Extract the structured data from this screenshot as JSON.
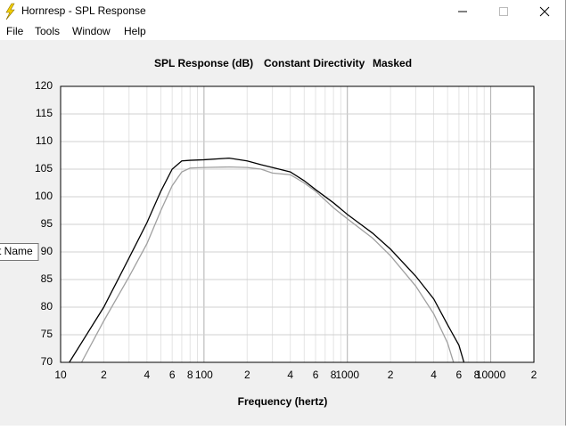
{
  "window": {
    "title": "Hornresp - SPL Response"
  },
  "menu": [
    "File",
    "Tools",
    "Window",
    "Help"
  ],
  "tooltip": "t Name",
  "chart_data": {
    "type": "line",
    "title": [
      "SPL Response (dB)",
      "Constant Directivity",
      "Masked"
    ],
    "x_label": "Frequency (hertz)",
    "log_x": true,
    "grid": true,
    "xlim": [
      10,
      20000
    ],
    "ylim": [
      70,
      120
    ],
    "yticks": [
      70,
      75,
      80,
      85,
      90,
      95,
      100,
      105,
      110,
      115,
      120
    ],
    "xticks": [
      10,
      {
        "value": 20,
        "label": "2"
      },
      {
        "value": 40,
        "label": "4"
      },
      {
        "value": 60,
        "label": "6"
      },
      {
        "value": 80,
        "label": "8"
      },
      100,
      {
        "value": 200,
        "label": "2"
      },
      {
        "value": 400,
        "label": "4"
      },
      {
        "value": 600,
        "label": "6"
      },
      {
        "value": 800,
        "label": "8"
      },
      1000,
      {
        "value": 2000,
        "label": "2"
      },
      {
        "value": 4000,
        "label": "4"
      },
      {
        "value": 6000,
        "label": "6"
      },
      {
        "value": 8000,
        "label": "8"
      },
      10000,
      {
        "value": 20000,
        "label": "2"
      }
    ],
    "xgrid_minor": [
      30,
      50,
      70,
      90,
      300,
      500,
      700,
      900,
      3000,
      5000,
      7000,
      9000
    ],
    "series": [
      {
        "color": "#000000",
        "x": [
          11.5,
          20,
          30,
          40,
          50,
          60,
          70,
          80,
          100,
          150,
          200,
          250,
          300,
          400,
          500,
          600,
          800,
          1000,
          1500,
          2000,
          3000,
          4000,
          5000,
          6000,
          6500
        ],
        "values": [
          70,
          80,
          88.9,
          95.3,
          101,
          105,
          106.5,
          106.6,
          106.7,
          107,
          106.5,
          105.8,
          105.3,
          104.5,
          102.9,
          101.3,
          98.9,
          96.8,
          93.4,
          90.5,
          85.6,
          81.5,
          76.8,
          73.1,
          70
        ]
      },
      {
        "color": "#a0a0a0",
        "x": [
          14,
          20,
          30,
          40,
          50,
          60,
          70,
          80,
          100,
          150,
          200,
          250,
          300,
          400,
          500,
          600,
          800,
          1000,
          1500,
          2000,
          3000,
          4000,
          5000,
          5500
        ],
        "values": [
          70,
          77.5,
          85.5,
          91.5,
          97.5,
          102,
          104.5,
          105.2,
          105.3,
          105.4,
          105.3,
          105,
          104.3,
          104,
          102.5,
          101,
          98,
          96,
          92.5,
          89.3,
          83.8,
          78.8,
          73.5,
          70
        ]
      }
    ]
  }
}
